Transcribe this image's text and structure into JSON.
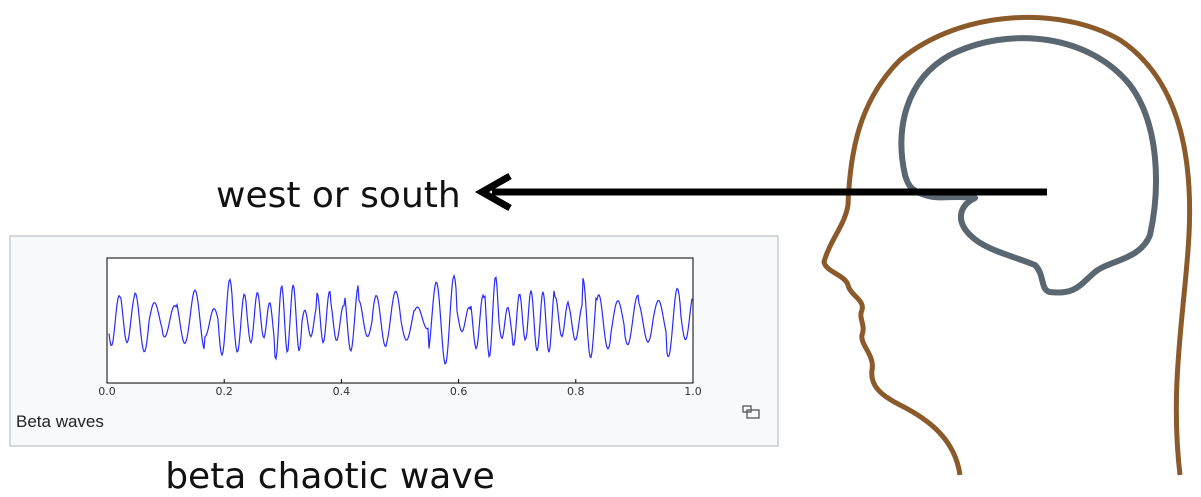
{
  "label": "west or south",
  "caption": "beta chaotic wave",
  "figure": {
    "title": "Beta waves",
    "xticks": [
      {
        "value": 0,
        "label": "0.0"
      },
      {
        "value": 0.2,
        "label": "0.2"
      },
      {
        "value": 0.4,
        "label": "0.4"
      },
      {
        "value": 0.6,
        "label": "0.6"
      },
      {
        "value": 0.8,
        "label": "0.8"
      },
      {
        "value": 1,
        "label": "1.0"
      }
    ],
    "xlim": [
      0,
      1
    ]
  }
}
